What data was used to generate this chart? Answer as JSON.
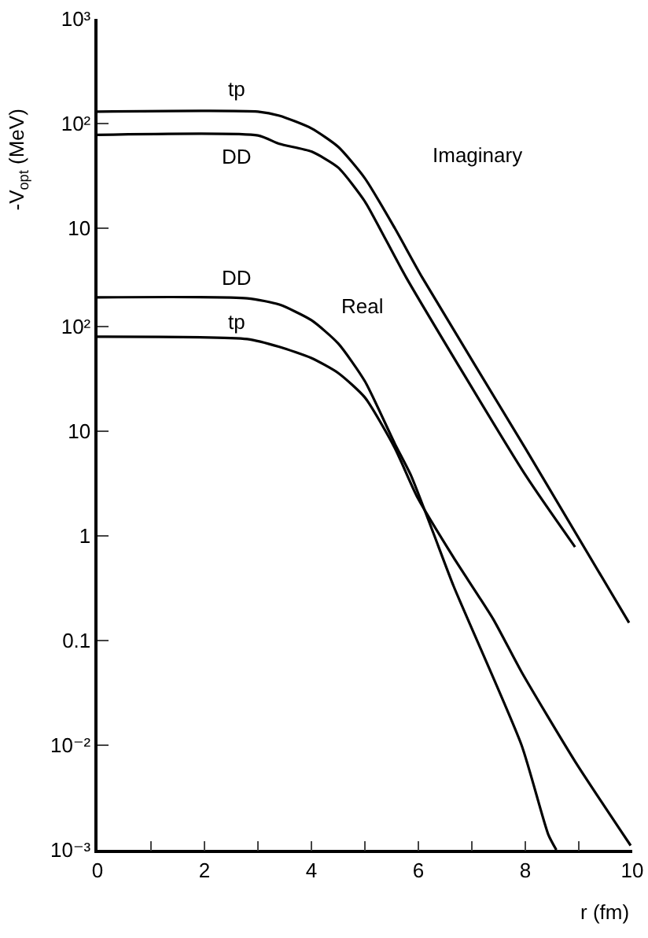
{
  "chart_data": [
    {
      "type": "line",
      "ylabel": "-V$_{opt}$ (MeV)",
      "annotations": [
        "Imaginary"
      ],
      "tick_labels": "y",
      "xlim": [
        0,
        10
      ],
      "ylim": [
        1.15e-05,
        1000
      ],
      "yticks": [
        10,
        {
          "value": 100,
          "label": "10²"
        },
        {
          "value": 1000,
          "label": "10³"
        }
      ],
      "log": "y",
      "grid": false,
      "legend": false,
      "series": [
        {
          "name": "tp",
          "color": "#000000",
          "x": [
            0,
            3,
            3.4,
            4,
            4.5,
            5,
            5.56,
            6.07,
            8,
            9.94
          ],
          "values": [
            130,
            130,
            119,
            90,
            60,
            30,
            10,
            3.4,
            0.079,
            0.0017
          ]
        },
        {
          "name": "DD",
          "color": "#000000",
          "x": [
            0,
            3,
            3.4,
            4,
            4.5,
            5,
            5.3,
            5.77,
            8,
            8.93
          ],
          "values": [
            78,
            77,
            64,
            54,
            38,
            18,
            9.5,
            3.4,
            0.044,
            0.009
          ]
        }
      ]
    },
    {
      "type": "line",
      "xlabel": "r (fm)",
      "annotations": [
        "Real"
      ],
      "xlim": [
        0,
        10
      ],
      "xticks": [
        0,
        {
          "value": 1,
          "label": null
        },
        2,
        {
          "value": 3,
          "label": null
        },
        4,
        {
          "value": 5,
          "label": null
        },
        6,
        {
          "value": 7,
          "label": null
        },
        8,
        {
          "value": 9,
          "label": null
        },
        10
      ],
      "ylim": [
        0.001,
        87000
      ],
      "yticks": [
        {
          "value": 0.001,
          "label": "10⁻³"
        },
        {
          "value": 0.01,
          "label": "10⁻²"
        },
        0.1,
        1,
        10,
        {
          "value": 100,
          "label": "10²"
        }
      ],
      "log": "y",
      "grid": false,
      "legend": false,
      "series": [
        {
          "name": "DD",
          "color": "#000000",
          "x": [
            0,
            2.8,
            3.4,
            4,
            4.5,
            5,
            5.56,
            5.86,
            6.27,
            6.66,
            7.93,
            8.43,
            8.58
          ],
          "values": [
            190,
            186,
            162,
            115,
            69,
            30,
            7.6,
            3.8,
            1.1,
            0.33,
            0.01,
            0.0014,
            0.001
          ]
        },
        {
          "name": "tp",
          "color": "#000000",
          "x": [
            0,
            2.8,
            3.4,
            4,
            4.5,
            5,
            5.56,
            5.97,
            6.66,
            7.4,
            7.93,
            8.93,
            9.97
          ],
          "values": [
            80,
            76,
            64,
            50,
            36,
            21,
            6.9,
            2.4,
            0.62,
            0.16,
            0.05,
            0.007,
            0.0011
          ]
        }
      ]
    }
  ]
}
